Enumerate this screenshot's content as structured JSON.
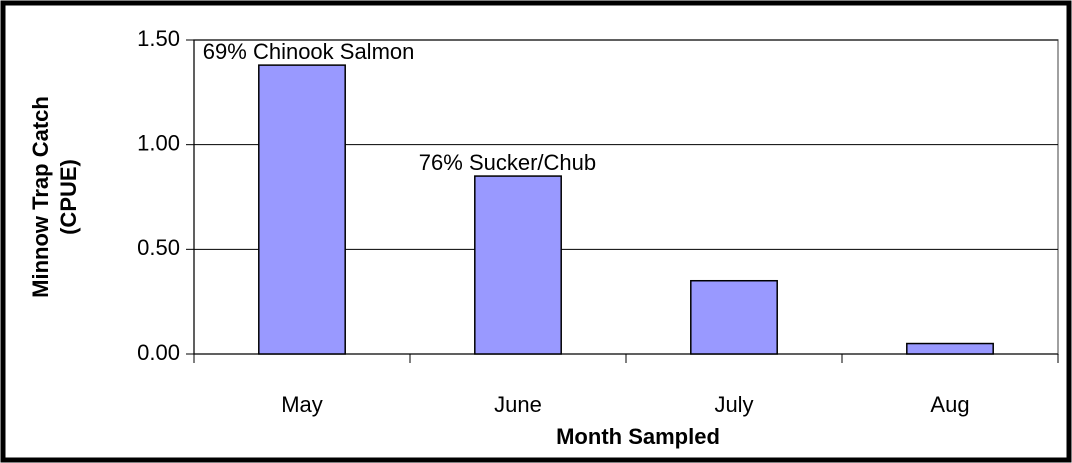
{
  "chart_data": {
    "type": "bar",
    "categories": [
      "May",
      "June",
      "July",
      "Aug"
    ],
    "values": [
      1.38,
      0.85,
      0.35,
      0.05
    ],
    "annotations": [
      "69% Chinook Salmon",
      "76% Sucker/Chub",
      null,
      null
    ],
    "color": "#9999ff",
    "xlabel": "Month Sampled",
    "ylabel": [
      "Minnow Trap Catch",
      "(CPUE)"
    ],
    "ylim": [
      0,
      1.5
    ],
    "yticks": [
      {
        "value": 0,
        "label": "0.00"
      },
      {
        "value": 0.5,
        "label": "0.50"
      },
      {
        "value": 1,
        "label": "1.00"
      },
      {
        "value": 1.5,
        "label": "1.50"
      }
    ],
    "grid": true
  }
}
